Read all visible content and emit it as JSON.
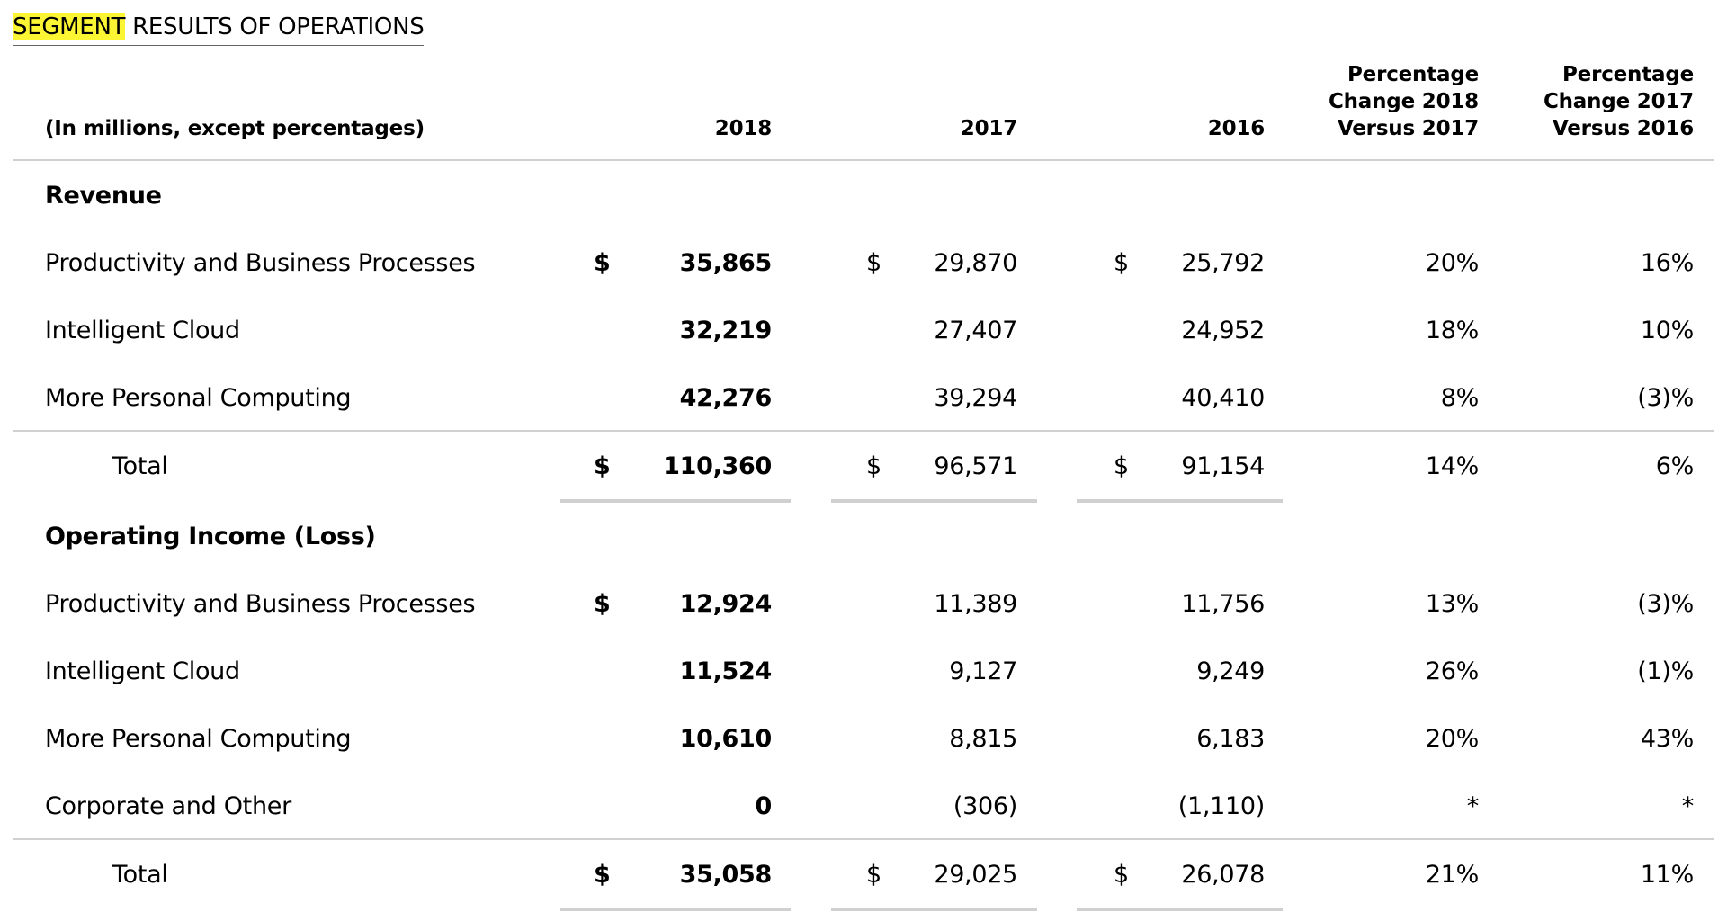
{
  "heading": {
    "highlight": "SEGMENT",
    "rest": " RESULTS OF OPERATIONS"
  },
  "header": {
    "units": "(In millions, except percentages)",
    "y2018": "2018",
    "y2017": "2017",
    "y2016": "2016",
    "pct1": [
      "Percentage",
      "Change 2018",
      "Versus 2017"
    ],
    "pct2": [
      "Percentage",
      "Change 2017",
      "Versus 2016"
    ]
  },
  "revenue": {
    "title": "Revenue",
    "rows": [
      {
        "label": "Productivity and Business Processes",
        "d1": "$",
        "v2018": "35,865",
        "d2": "$",
        "v2017": "29,870",
        "d3": "$",
        "v2016": "25,792",
        "p1": "20%",
        "p2": "16%"
      },
      {
        "label": "Intelligent Cloud",
        "d1": "",
        "v2018": "32,219",
        "d2": "",
        "v2017": "27,407",
        "d3": "",
        "v2016": "24,952",
        "p1": "18%",
        "p2": "10%"
      },
      {
        "label": "More Personal Computing",
        "d1": "",
        "v2018": "42,276",
        "d2": "",
        "v2017": "39,294",
        "d3": "",
        "v2016": "40,410",
        "p1": "8%",
        "p2": "(3)%"
      }
    ],
    "total": {
      "label": "Total",
      "d1": "$",
      "v2018": "110,360",
      "d2": "$",
      "v2017": "96,571",
      "d3": "$",
      "v2016": "91,154",
      "p1": "14%",
      "p2": "6%"
    }
  },
  "operating": {
    "title": "Operating Income (Loss)",
    "rows": [
      {
        "label": "Productivity and Business Processes",
        "d1": "$",
        "v2018": "12,924",
        "d2": "",
        "v2017": "11,389",
        "d3": "",
        "v2016": "11,756",
        "p1": "13%",
        "p2": "(3)%"
      },
      {
        "label": "Intelligent Cloud",
        "d1": "",
        "v2018": "11,524",
        "d2": "",
        "v2017": "9,127",
        "d3": "",
        "v2016": "9,249",
        "p1": "26%",
        "p2": "(1)%"
      },
      {
        "label": "More Personal Computing",
        "d1": "",
        "v2018": "10,610",
        "d2": "",
        "v2017": "8,815",
        "d3": "",
        "v2016": "6,183",
        "p1": "20%",
        "p2": "43%"
      },
      {
        "label": "Corporate and Other",
        "d1": "",
        "v2018": "0",
        "d2": "",
        "v2017": "(306)",
        "d3": "",
        "v2016": "(1,110)",
        "p1": "*",
        "p2": "*"
      }
    ],
    "total": {
      "label": "Total",
      "d1": "$",
      "v2018": "35,058",
      "d2": "$",
      "v2017": "29,025",
      "d3": "$",
      "v2016": "26,078",
      "p1": "21%",
      "p2": "11%"
    }
  }
}
